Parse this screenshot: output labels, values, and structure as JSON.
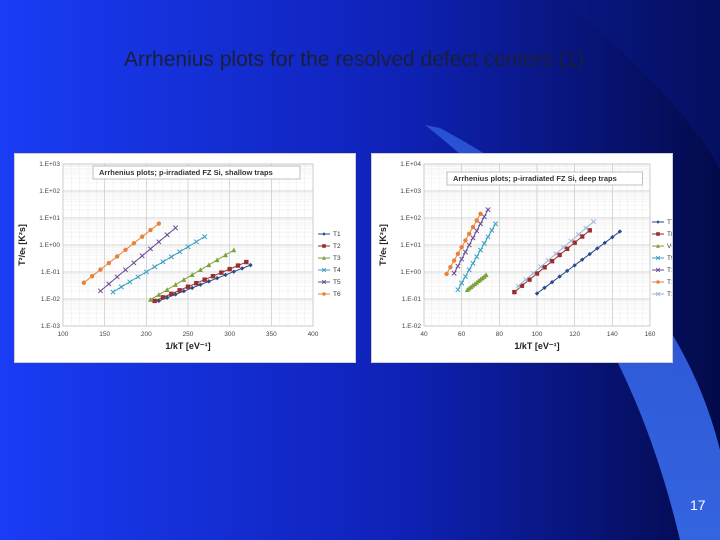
{
  "slide": {
    "title": "Arrhenius plots for the resolved defect centers (1)",
    "page_number": "17"
  },
  "chart_data": [
    {
      "type": "scatter",
      "title": "Arrhenius plots; p-irradiated FZ Si, shallow traps",
      "xlabel": "1/kT [eV⁻¹]",
      "ylabel": "T²/eₜ [K²s]",
      "xlim": [
        100,
        400
      ],
      "ylim": [
        0.001,
        1000
      ],
      "yscale": "log",
      "x_ticks": [
        "100",
        "150",
        "200",
        "250",
        "300",
        "350",
        "400"
      ],
      "y_ticks": [
        "1.E-03",
        "1.E-02",
        "1.E-01",
        "1.E+00",
        "1.E+01",
        "1.E+02",
        "1.E+03"
      ],
      "grid": true,
      "legend": "right",
      "series": [
        {
          "name": "T1",
          "color": "#2a4b8d",
          "marker": "diamond",
          "x": [
            215,
            225,
            235,
            245,
            255,
            265,
            275,
            285,
            295,
            305,
            315,
            325
          ],
          "y": [
            0.0085,
            0.0112,
            0.0148,
            0.0195,
            0.0257,
            0.034,
            0.045,
            0.059,
            0.078,
            0.103,
            0.136,
            0.18
          ]
        },
        {
          "name": "T2",
          "color": "#9b2d2d",
          "marker": "square",
          "x": [
            210,
            220,
            230,
            240,
            250,
            260,
            270,
            280,
            290,
            300,
            310,
            320
          ],
          "y": [
            0.0085,
            0.0115,
            0.0155,
            0.021,
            0.0285,
            0.0385,
            0.052,
            0.07,
            0.095,
            0.128,
            0.173,
            0.234
          ]
        },
        {
          "name": "T3",
          "color": "#7aa23c",
          "marker": "triangle",
          "x": [
            205,
            215,
            225,
            235,
            245,
            255,
            265,
            275,
            285,
            295,
            305
          ],
          "y": [
            0.0095,
            0.0145,
            0.022,
            0.034,
            0.052,
            0.079,
            0.12,
            0.183,
            0.279,
            0.425,
            0.65
          ]
        },
        {
          "name": "T4",
          "color": "#3aa0c2",
          "marker": "x",
          "x": [
            160,
            170,
            180,
            190,
            200,
            210,
            220,
            230,
            240,
            250,
            260,
            270
          ],
          "y": [
            0.018,
            0.028,
            0.043,
            0.066,
            0.101,
            0.155,
            0.238,
            0.365,
            0.56,
            0.86,
            1.32,
            2.03
          ]
        },
        {
          "name": "T5",
          "color": "#6a4c93",
          "marker": "x",
          "x": [
            145,
            155,
            165,
            175,
            185,
            195,
            205,
            215,
            225,
            235
          ],
          "y": [
            0.02,
            0.036,
            0.066,
            0.12,
            0.218,
            0.396,
            0.72,
            1.31,
            2.38,
            4.32
          ]
        },
        {
          "name": "T6",
          "color": "#e8823a",
          "marker": "circle",
          "x": [
            125,
            135,
            145,
            155,
            165,
            175,
            185,
            195,
            205,
            215
          ],
          "y": [
            0.04,
            0.07,
            0.123,
            0.215,
            0.377,
            0.66,
            1.16,
            2.03,
            3.56,
            6.24
          ]
        }
      ]
    },
    {
      "type": "scatter",
      "title": "Arrhenius plots; p-irradiated FZ Si, deep traps",
      "xlabel": "1/kT [eV⁻¹]",
      "ylabel": "T²/eₜ [K²s]",
      "xlim": [
        40,
        160
      ],
      "ylim": [
        0.01,
        10000
      ],
      "yscale": "log",
      "x_ticks": [
        "40",
        "60",
        "80",
        "100",
        "120",
        "140",
        "160"
      ],
      "y_ticks": [
        "1.E-02",
        "1.E-01",
        "1.E+00",
        "1.E+01",
        "1.E+02",
        "1.E+03",
        "1.E+04"
      ],
      "grid": true,
      "legend": "right",
      "series": [
        {
          "name": "T7",
          "color": "#2a4b8d",
          "marker": "diamond",
          "x": [
            100,
            104,
            108,
            112,
            116,
            120,
            124,
            128,
            132,
            136,
            140,
            144
          ],
          "y": [
            0.16,
            0.26,
            0.42,
            0.68,
            1.1,
            1.77,
            2.86,
            4.62,
            7.46,
            12.05,
            19.5,
            31.5
          ]
        },
        {
          "name": "T8",
          "color": "#9b2d2d",
          "marker": "square",
          "x": [
            88,
            92,
            96,
            100,
            104,
            108,
            112,
            116,
            120,
            124,
            128
          ],
          "y": [
            0.18,
            0.31,
            0.52,
            0.88,
            1.49,
            2.52,
            4.27,
            7.22,
            12.2,
            20.6,
            34.9
          ]
        },
        {
          "name": "VO(-)",
          "color": "#7aa23c",
          "marker": "triangle",
          "x": [
            63,
            64,
            65,
            66,
            67,
            68,
            69,
            70,
            71,
            72,
            73
          ],
          "y": [
            0.22,
            0.25,
            0.28,
            0.32,
            0.36,
            0.41,
            0.47,
            0.53,
            0.6,
            0.68,
            0.78
          ]
        },
        {
          "name": "T9",
          "color": "#3aa0c2",
          "marker": "x",
          "x": [
            58,
            60,
            62,
            64,
            66,
            68,
            70,
            72,
            74,
            76,
            78
          ],
          "y": [
            0.22,
            0.39,
            0.68,
            1.2,
            2.1,
            3.7,
            6.5,
            11.4,
            20.0,
            35.0,
            61.0
          ]
        },
        {
          "name": "T10",
          "color": "#6a4c93",
          "marker": "x",
          "x": [
            56,
            58,
            60,
            62,
            64,
            66,
            68,
            70,
            72,
            74
          ],
          "y": [
            0.9,
            1.65,
            3.0,
            5.5,
            10.0,
            18.3,
            33.4,
            61.0,
            111.0,
            203.0
          ]
        },
        {
          "name": "T11",
          "color": "#e8823a",
          "marker": "circle",
          "x": [
            52,
            54,
            56,
            58,
            60,
            62,
            64,
            66,
            68,
            70
          ],
          "y": [
            0.85,
            1.5,
            2.65,
            4.7,
            8.3,
            14.7,
            26.0,
            46.0,
            81.0,
            143.0
          ]
        },
        {
          "name": "T12",
          "color": "#9db6d9",
          "marker": "x",
          "x": [
            90,
            94,
            98,
            102,
            106,
            110,
            114,
            118,
            122,
            126,
            130
          ],
          "y": [
            0.3,
            0.52,
            0.9,
            1.56,
            2.7,
            4.7,
            8.1,
            14.0,
            24.3,
            42.0,
            72.8
          ]
        }
      ]
    }
  ]
}
